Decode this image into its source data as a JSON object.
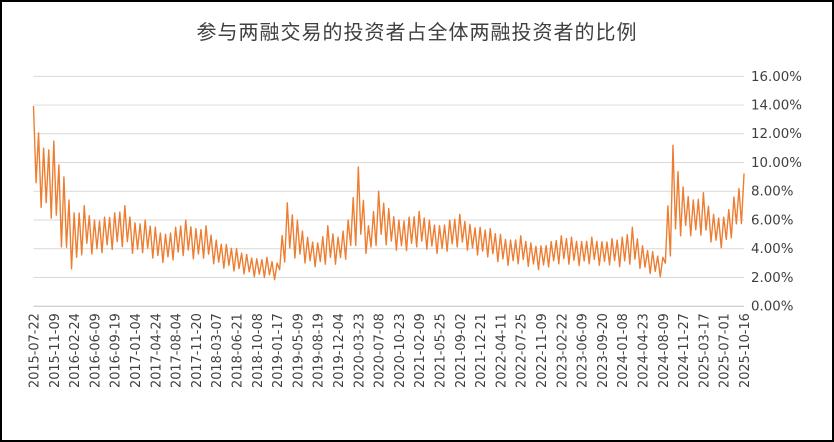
{
  "colors": {
    "series": "#ED7D31",
    "gridline": "#D9D9D9",
    "axis_line": "#BFBFBF",
    "text": "#404040",
    "title_text": "#404040",
    "border": "#000000",
    "background": "#FFFFFF"
  },
  "chart_data": {
    "type": "line",
    "title": "参与两融交易的投资者占全体两融投资者的比例",
    "xlabel": "",
    "ylabel": "",
    "legend": "none",
    "grid": "horizontal",
    "y_axis_side": "right",
    "x_label_rotation": -90,
    "ylim": [
      0,
      16
    ],
    "y_tick_labels": [
      "0.00%",
      "2.00%",
      "4.00%",
      "6.00%",
      "8.00%",
      "10.00%",
      "12.00%",
      "14.00%",
      "16.00%"
    ],
    "x_tick_labels": [
      "2015-07-22",
      "2015-11-09",
      "2016-02-24",
      "2016-06-09",
      "2016-09-19",
      "2017-01-04",
      "2017-04-24",
      "2017-08-04",
      "2017-11-20",
      "2018-03-07",
      "2018-06-21",
      "2018-10-08",
      "2019-01-17",
      "2019-05-09",
      "2019-08-19",
      "2019-12-04",
      "2020-03-23",
      "2020-07-08",
      "2020-10-23",
      "2021-02-09",
      "2021-05-25",
      "2021-09-02",
      "2021-12-21",
      "2022-04-11",
      "2022-07-25",
      "2022-11-09",
      "2023-02-22",
      "2023-06-09",
      "2023-09-20",
      "2024-01-08",
      "2024-04-23",
      "2024-08-09",
      "2024-11-27",
      "2025-03-17",
      "2025-07-01",
      "2025-10-16"
    ],
    "sampling": "daily percentage series shown as a dense oscillating band; hi/lo envelope sampled at each x tick and at the midpoint between ticks (71 samples)",
    "envelope": {
      "lo": [
        8.0,
        6.5,
        6.0,
        3.5,
        2.3,
        4.0,
        3.5,
        3.8,
        4.0,
        4.2,
        3.5,
        3.8,
        3.2,
        3.0,
        3.3,
        3.6,
        3.2,
        3.4,
        2.8,
        2.6,
        2.4,
        2.2,
        2.0,
        2.0,
        1.8,
        3.5,
        3.3,
        2.9,
        2.7,
        3.0,
        2.9,
        3.4,
        4.5,
        3.4,
        4.5,
        4.2,
        3.8,
        3.9,
        4.2,
        3.9,
        3.6,
        3.9,
        4.2,
        3.8,
        3.5,
        3.4,
        3.0,
        2.8,
        3.0,
        2.7,
        2.5,
        2.8,
        3.0,
        2.9,
        2.8,
        3.0,
        2.8,
        2.9,
        2.7,
        3.0,
        2.5,
        2.2,
        2.0,
        4.0,
        5.2,
        4.8,
        5.0,
        4.3,
        4.0,
        5.0,
        6.0
      ],
      "hi": [
        13.9,
        11.0,
        11.5,
        9.0,
        6.5,
        7.0,
        6.0,
        6.2,
        6.5,
        7.0,
        5.8,
        6.0,
        5.5,
        5.0,
        5.5,
        6.0,
        5.4,
        5.6,
        4.6,
        4.3,
        4.0,
        3.6,
        3.3,
        3.4,
        3.0,
        7.2,
        6.0,
        4.8,
        4.4,
        5.6,
        4.8,
        6.0,
        9.7,
        5.6,
        8.0,
        6.8,
        6.0,
        6.2,
        6.6,
        6.0,
        5.6,
        6.0,
        6.4,
        5.7,
        5.5,
        5.4,
        5.0,
        4.6,
        4.9,
        4.4,
        4.2,
        4.5,
        4.9,
        4.8,
        4.5,
        4.8,
        4.5,
        4.7,
        4.8,
        5.5,
        4.2,
        3.8,
        3.4,
        11.2,
        8.3,
        7.4,
        7.9,
        6.4,
        6.2,
        7.6,
        9.2
      ]
    },
    "notable_points": {
      "start_peak": {
        "date": "2015-07",
        "value": 13.9
      },
      "low_2019_01": {
        "date": "2019-01",
        "value": 1.8
      },
      "spike_2020_03": {
        "date": "2020-03",
        "value": 9.7
      },
      "low_2024_08": {
        "date": "2024-08",
        "value": 2.0
      },
      "spike_2024_10": {
        "date": "2024-10",
        "value": 11.2
      },
      "end_peak": {
        "date": "2025-10",
        "value": 9.2
      }
    }
  }
}
